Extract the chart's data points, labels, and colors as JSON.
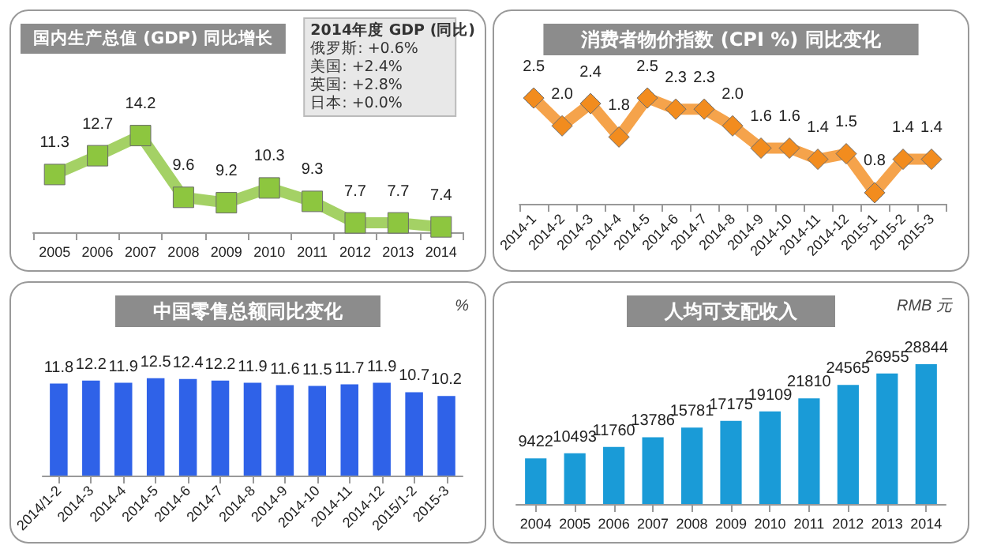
{
  "chart_data": [
    {
      "type": "line",
      "title": "国内生产总值 (GDP) 同比增长",
      "categories": [
        "2005",
        "2006",
        "2007",
        "2008",
        "2009",
        "2010",
        "2011",
        "2012",
        "2013",
        "2014"
      ],
      "values": [
        11.3,
        12.7,
        14.2,
        9.6,
        9.2,
        10.3,
        9.3,
        7.7,
        7.7,
        7.4
      ],
      "color": "#8dc63f",
      "marker": "square",
      "data_labels": true,
      "annotations": [
        "2014年度 GDP (同比)",
        "俄罗斯: +0.6%",
        "美国: +2.4%",
        "英国: +2.8%",
        "日本: +0.0%"
      ]
    },
    {
      "type": "line",
      "title": "消费者物价指数 (CPI %) 同比变化",
      "categories": [
        "2014-1",
        "2014-2",
        "2014-3",
        "2014-4",
        "2014-5",
        "2014-6",
        "2014-7",
        "2014-8",
        "2014-9",
        "2014-10",
        "2014-11",
        "2014-12",
        "2015-1",
        "2015-2",
        "2015-3"
      ],
      "values": [
        2.5,
        2.0,
        2.4,
        1.8,
        2.5,
        2.3,
        2.3,
        2.0,
        1.6,
        1.6,
        1.4,
        1.5,
        0.8,
        1.4,
        1.4
      ],
      "color": "#f28c1e",
      "marker": "diamond",
      "value_labels": [
        "2.5",
        "2.0",
        "2.4",
        "1.8",
        "2.5",
        "2.3",
        "2.3",
        "2.0",
        "1.6",
        "1.6",
        "1.4",
        "1.5",
        "0.8",
        "1.4",
        "1.4"
      ]
    },
    {
      "type": "bar",
      "title": "中国零售总额同比变化",
      "ylabel": "%",
      "categories": [
        "2014/1-2",
        "2014-3",
        "2014-4",
        "2014-5",
        "2014-6",
        "2014-7",
        "2014-8",
        "2014-9",
        "2014-10",
        "2014-11",
        "2014-12",
        "2015/1-2",
        "2015-3"
      ],
      "values": [
        11.8,
        12.2,
        11.9,
        12.5,
        12.4,
        12.2,
        11.9,
        11.6,
        11.5,
        11.7,
        11.9,
        10.7,
        10.2
      ],
      "color": "#2f62e8",
      "data_labels": true
    },
    {
      "type": "bar",
      "title": "人均可支配收入",
      "ylabel": "RMB 元",
      "categories": [
        "2004",
        "2005",
        "2006",
        "2007",
        "2008",
        "2009",
        "2010",
        "2011",
        "2012",
        "2013",
        "2014"
      ],
      "values": [
        9422,
        10493,
        11760,
        13786,
        15781,
        17175,
        19109,
        21810,
        24565,
        26955,
        28844
      ],
      "color": "#1a9bd7",
      "data_labels": true
    }
  ]
}
